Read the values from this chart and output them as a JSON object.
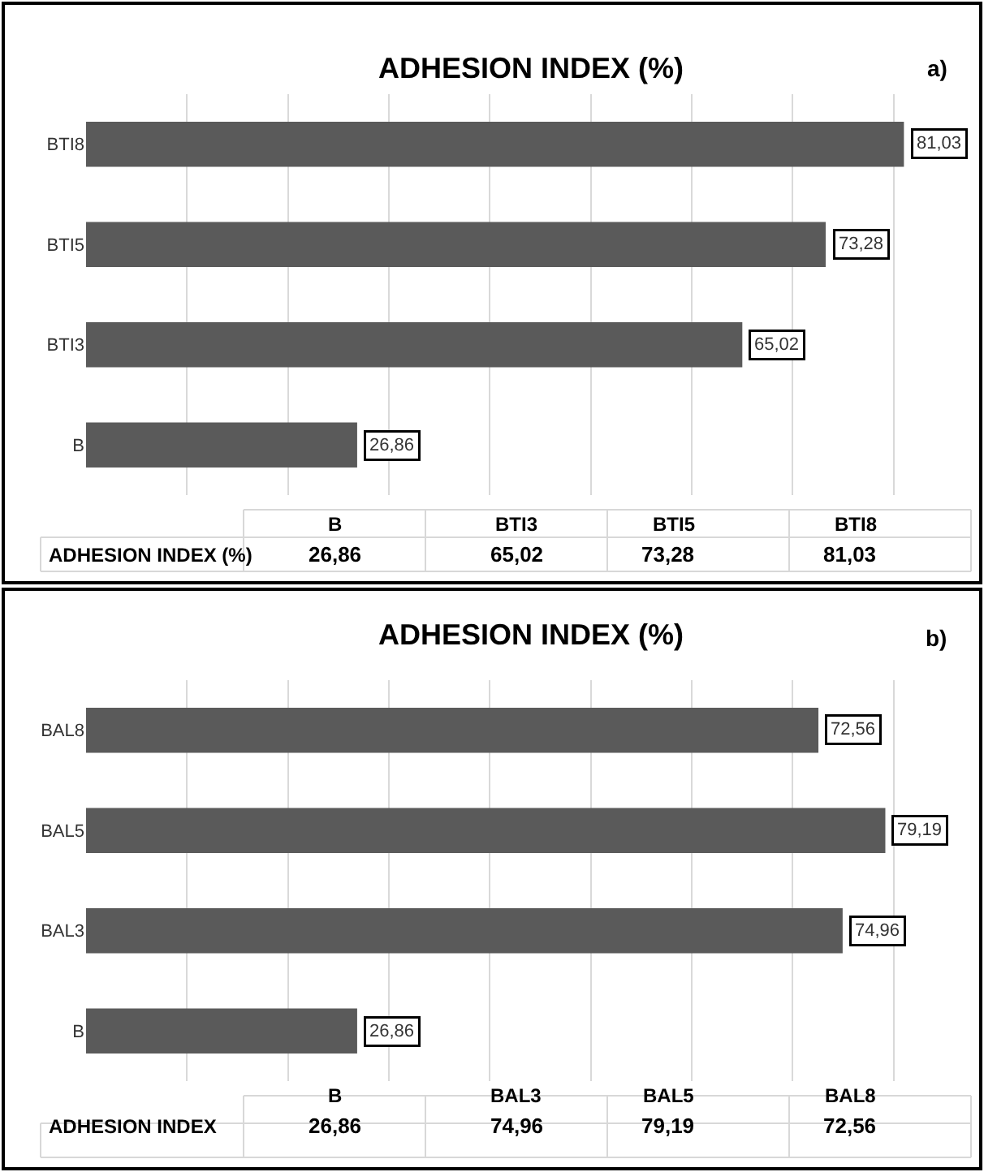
{
  "chart_data": [
    {
      "type": "bar",
      "orientation": "horizontal",
      "title": "ADHESION INDEX (%)",
      "annotations": [
        "a)"
      ],
      "categories": [
        "BTI8",
        "BTI5",
        "BTI3",
        "B"
      ],
      "series": [
        {
          "name": "ADHESION INDEX (%)",
          "color": "#5a5a5a",
          "values": [
            81.03,
            73.28,
            65.02,
            26.86
          ],
          "value_labels": [
            "81,03",
            "73,28",
            "65,02",
            "26,86"
          ]
        }
      ],
      "xlim": [
        0,
        88
      ],
      "grid": "x",
      "tick_labels": "y"
    },
    {
      "type": "bar",
      "orientation": "horizontal",
      "title": "ADHESION INDEX (%)",
      "annotations": [
        "b)"
      ],
      "categories": [
        "BAL8",
        "BAL5",
        "BAL3",
        "B"
      ],
      "series": [
        {
          "name": "ADHESION INDEX",
          "color": "#5a5a5a",
          "values": [
            72.56,
            79.19,
            74.96,
            26.86
          ],
          "value_labels": [
            "72,56",
            "79,19",
            "74,96",
            "26,86"
          ]
        }
      ],
      "xlim": [
        0,
        88
      ],
      "grid": "x",
      "tick_labels": "y"
    }
  ]
}
